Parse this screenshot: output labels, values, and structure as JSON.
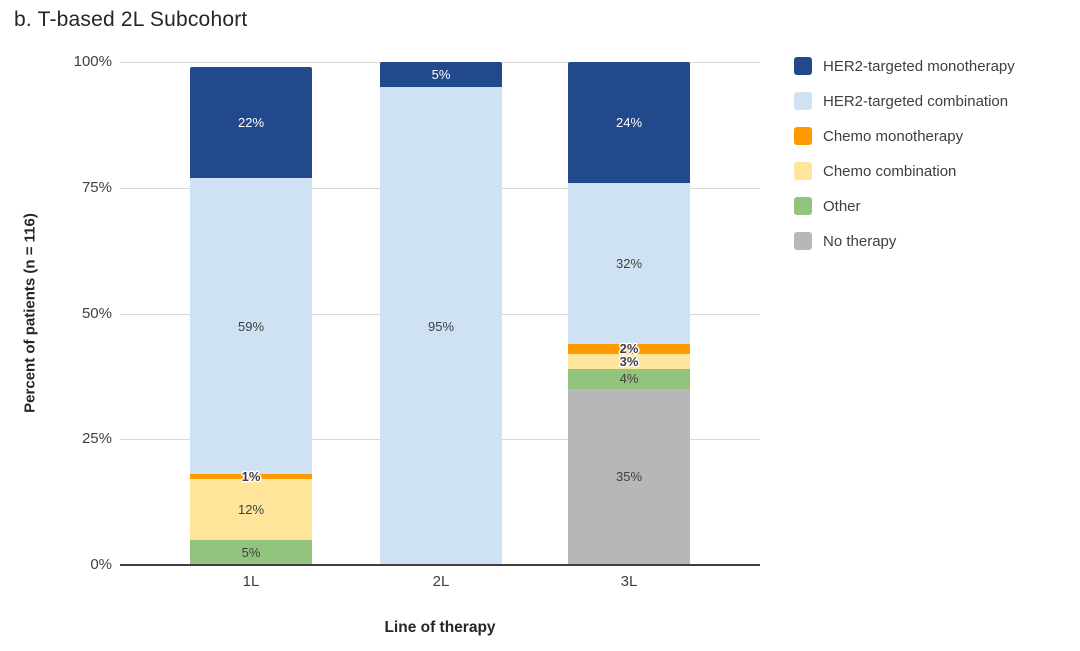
{
  "chart_data": {
    "type": "bar",
    "stacked": true,
    "title": "b. T-based 2L Subcohort",
    "xlabel": "Line of therapy",
    "ylabel": "Percent of patients (n = 116)",
    "categories": [
      "1L",
      "2L",
      "3L"
    ],
    "ylim": [
      0,
      100
    ],
    "y_tick_labels": [
      "0%",
      "25%",
      "50%",
      "75%",
      "100%"
    ],
    "y_tick_values": [
      0,
      25,
      50,
      75,
      100
    ],
    "grid": true,
    "legend_position": "right",
    "data_label_format": "value + %",
    "series": [
      {
        "name": "HER2-targeted monotherapy",
        "color": "#21498C",
        "text_color": "#FFFFFF",
        "values": [
          22,
          5,
          24
        ]
      },
      {
        "name": "HER2-targeted combination",
        "color": "#CFE2F3",
        "text_color": "#3F3F3F",
        "values": [
          59,
          95,
          32
        ]
      },
      {
        "name": "Chemo monotherapy",
        "color": "#FF9900",
        "text_color": "#3F3F3F",
        "values": [
          1,
          0,
          2
        ]
      },
      {
        "name": "Chemo combination",
        "color": "#FFE599",
        "text_color": "#3F3F3F",
        "values": [
          12,
          0,
          3
        ]
      },
      {
        "name": "Other",
        "color": "#93C47D",
        "text_color": "#3F3F3F",
        "values": [
          5,
          0,
          4
        ]
      },
      {
        "name": "No therapy",
        "color": "#B7B7B7",
        "text_color": "#3F3F3F",
        "values": [
          0,
          0,
          35
        ]
      }
    ],
    "colors": {
      "gridline": "#D8D8D8",
      "axis_line": "#3F3F3F",
      "tick_text": "#3C4043",
      "title_text": "#262626"
    }
  }
}
